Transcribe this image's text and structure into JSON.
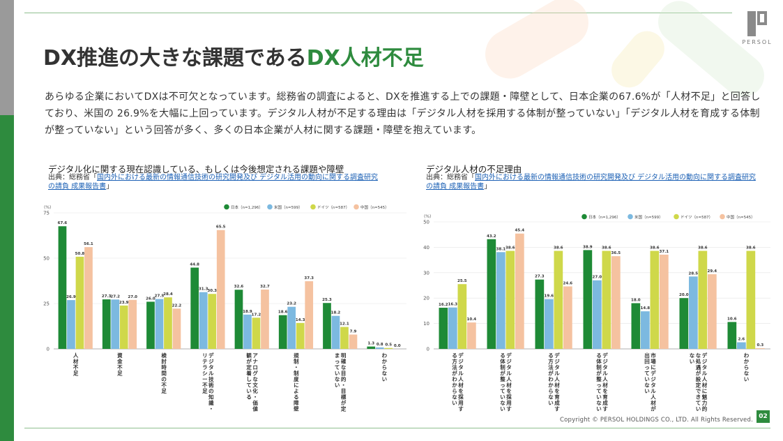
{
  "header": {
    "title_main": "DX推進の大きな課題である",
    "title_accent": "DX人材不足",
    "logo_text": "PERSOL"
  },
  "lead_text": "あらゆる企業においてDXは不可欠となっています。総務省の調査によると、DXを推進する上での課題・障壁として、日本企業の67.6%が「人材不足」と回答しており、米国の 26.9%を大幅に上回っています。デジタル人材が不足する理由は「デジタル人材を採用する体制が整っていない」「デジタル人材を育成する体制が整っていない」という回答が多く、多くの日本企業が人材に関する課題・障壁を抱えています。",
  "footer": {
    "copyright": "Copyright © PERSOL HOLDINGS CO., LTD. All Rights Reserved.",
    "page_number": "02"
  },
  "colors": {
    "japan": "#1e8a36",
    "us": "#7cb9e0",
    "germany": "#cfd84a",
    "china": "#f5c2a0",
    "accent": "#2e8b3e"
  },
  "chart_data": [
    {
      "type": "bar",
      "title": "デジタル化に関する現在認識している、もしくは今後想定される課題や障壁",
      "source_prefix": "出典：総務省「",
      "source_link": "国内外における最新の情報通信技術の研究開発及び デジタル活用の動向に関する調査研究の請負 成果報告書",
      "source_suffix": "」",
      "unit_label": "(%)",
      "ylim": [
        0,
        75
      ],
      "yticks": [
        "0",
        "25",
        "50",
        "75"
      ],
      "legend": [
        "日本（n=1,296）",
        "米国（n=599）",
        "ドイツ（n=587）",
        "中国（n=545）"
      ],
      "categories": [
        "人材不足",
        "資金不足",
        "検討時間の不足",
        "デジタル技術の知識・リテラシー不足",
        "アナログな文化・価値観が定着している",
        "規制・制度による障壁",
        "明確な目的・目標が定まっていない",
        "わからない"
      ],
      "series": [
        {
          "name": "日本（n=1,296）",
          "values": [
            67.6,
            27.3,
            26.0,
            44.8,
            32.6,
            18.6,
            25.3,
            1.3
          ],
          "labels": [
            "67.6",
            "27.3",
            "26.0",
            "44.8",
            "32.6",
            "18.6",
            "25.3",
            "1.3"
          ]
        },
        {
          "name": "米国（n=599）",
          "values": [
            26.9,
            27.2,
            27.5,
            31.3,
            18.9,
            23.2,
            18.2,
            0.8
          ],
          "labels": [
            "26.9",
            "27.2",
            "27.5",
            "31.3",
            "18.9",
            "23.2",
            "18.2",
            "0.8"
          ]
        },
        {
          "name": "ドイツ（n=587）",
          "values": [
            50.8,
            23.9,
            28.4,
            30.3,
            17.2,
            14.3,
            12.1,
            0.5
          ],
          "labels": [
            "50.8",
            "23.9",
            "28.4",
            "30.3",
            "17.2",
            "14.3",
            "12.1",
            "0.5"
          ]
        },
        {
          "name": "中国（n=545）",
          "values": [
            56.1,
            27.0,
            22.2,
            65.5,
            32.7,
            37.3,
            7.9,
            0.0
          ],
          "labels": [
            "56.1",
            "27.0",
            "22.2",
            "65.5",
            "32.7",
            "37.3",
            "7.9",
            "0.0"
          ]
        }
      ]
    },
    {
      "type": "bar",
      "title": "デジタル人材の不足理由",
      "source_prefix": "出典：総務省「",
      "source_link": "国内外における最新の情報通信技術の研究開発及び デジタル活用の動向に関する調査研究の請負 成果報告書",
      "source_suffix": "」",
      "unit_label": "(%)",
      "ylim": [
        0,
        50
      ],
      "yticks": [
        "0",
        "10",
        "20",
        "30",
        "40",
        "50"
      ],
      "legend": [
        "日本（n=1,296）",
        "米国（n=599）",
        "ドイツ（n=587）",
        "中国（n=545）"
      ],
      "categories": [
        "デジタル人材を採用する方法がわからない",
        "デジタル人材を採用する体制が整っていない",
        "デジタル人材を育成する方法がわからない",
        "デジタル人材を育成する体制が整っていない",
        "市場にデジタル人材が出回っていない",
        "デジタル人材に魅力的な処遇が設定できていない",
        "わからない"
      ],
      "series": [
        {
          "name": "日本（n=1,296）",
          "values": [
            16.2,
            43.2,
            27.3,
            38.9,
            18.0,
            20.0,
            10.6
          ],
          "labels": [
            "16.2",
            "43.2",
            "27.3",
            "38.9",
            "18.0",
            "20.0",
            "10.6"
          ]
        },
        {
          "name": "米国（n=599）",
          "values": [
            16.3,
            38.1,
            19.6,
            27.0,
            14.8,
            28.5,
            2.6
          ],
          "labels": [
            "16.3",
            "38.1",
            "19.6",
            "27.0",
            "14.8",
            "28.5",
            "2.6"
          ]
        },
        {
          "name": "ドイツ（n=587）",
          "values": [
            25.5,
            38.6,
            38.6,
            38.6,
            38.6,
            38.6,
            38.6
          ],
          "labels": [
            "25.5",
            "38.6",
            "38.6",
            "38.6",
            "38.6",
            "38.6",
            "38.6"
          ]
        },
        {
          "name": "中国（n=545）",
          "values": [
            10.4,
            45.4,
            24.6,
            36.5,
            37.1,
            29.4,
            0.3
          ],
          "labels": [
            "10.4",
            "45.4",
            "24.6",
            "36.5",
            "37.1",
            "29.4",
            "0.3"
          ]
        }
      ]
    }
  ]
}
